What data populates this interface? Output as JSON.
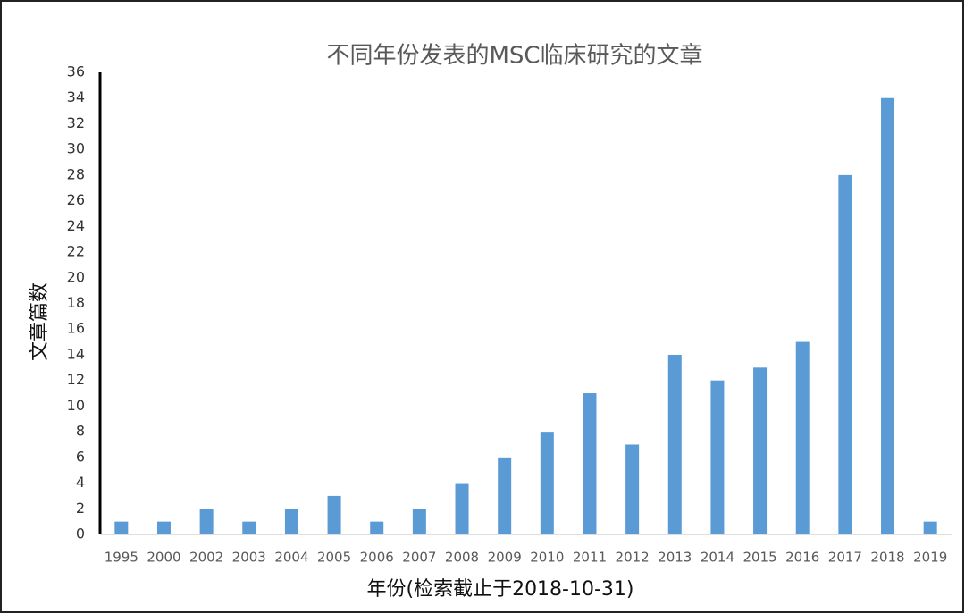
{
  "chart_data": {
    "type": "bar",
    "title": "不同年份发表的MSC临床研究的文章",
    "x_label": "年份(检索截止于2018-10-31)",
    "y_label": "文章篇数",
    "categories": [
      "1995",
      "2000",
      "2002",
      "2003",
      "2004",
      "2005",
      "2006",
      "2007",
      "2008",
      "2009",
      "2010",
      "2011",
      "2012",
      "2013",
      "2014",
      "2015",
      "2016",
      "2017",
      "2018",
      "2019"
    ],
    "values": [
      1,
      1,
      2,
      1,
      2,
      3,
      1,
      2,
      4,
      6,
      8,
      11,
      7,
      14,
      12,
      13,
      15,
      28,
      34,
      1
    ],
    "color": "#5b9bd5",
    "ylim": [
      0,
      36
    ],
    "yticks": [
      0,
      2,
      4,
      6,
      8,
      10,
      12,
      14,
      16,
      18,
      20,
      22,
      24,
      26,
      28,
      30,
      32,
      34,
      36
    ],
    "grid": false
  }
}
